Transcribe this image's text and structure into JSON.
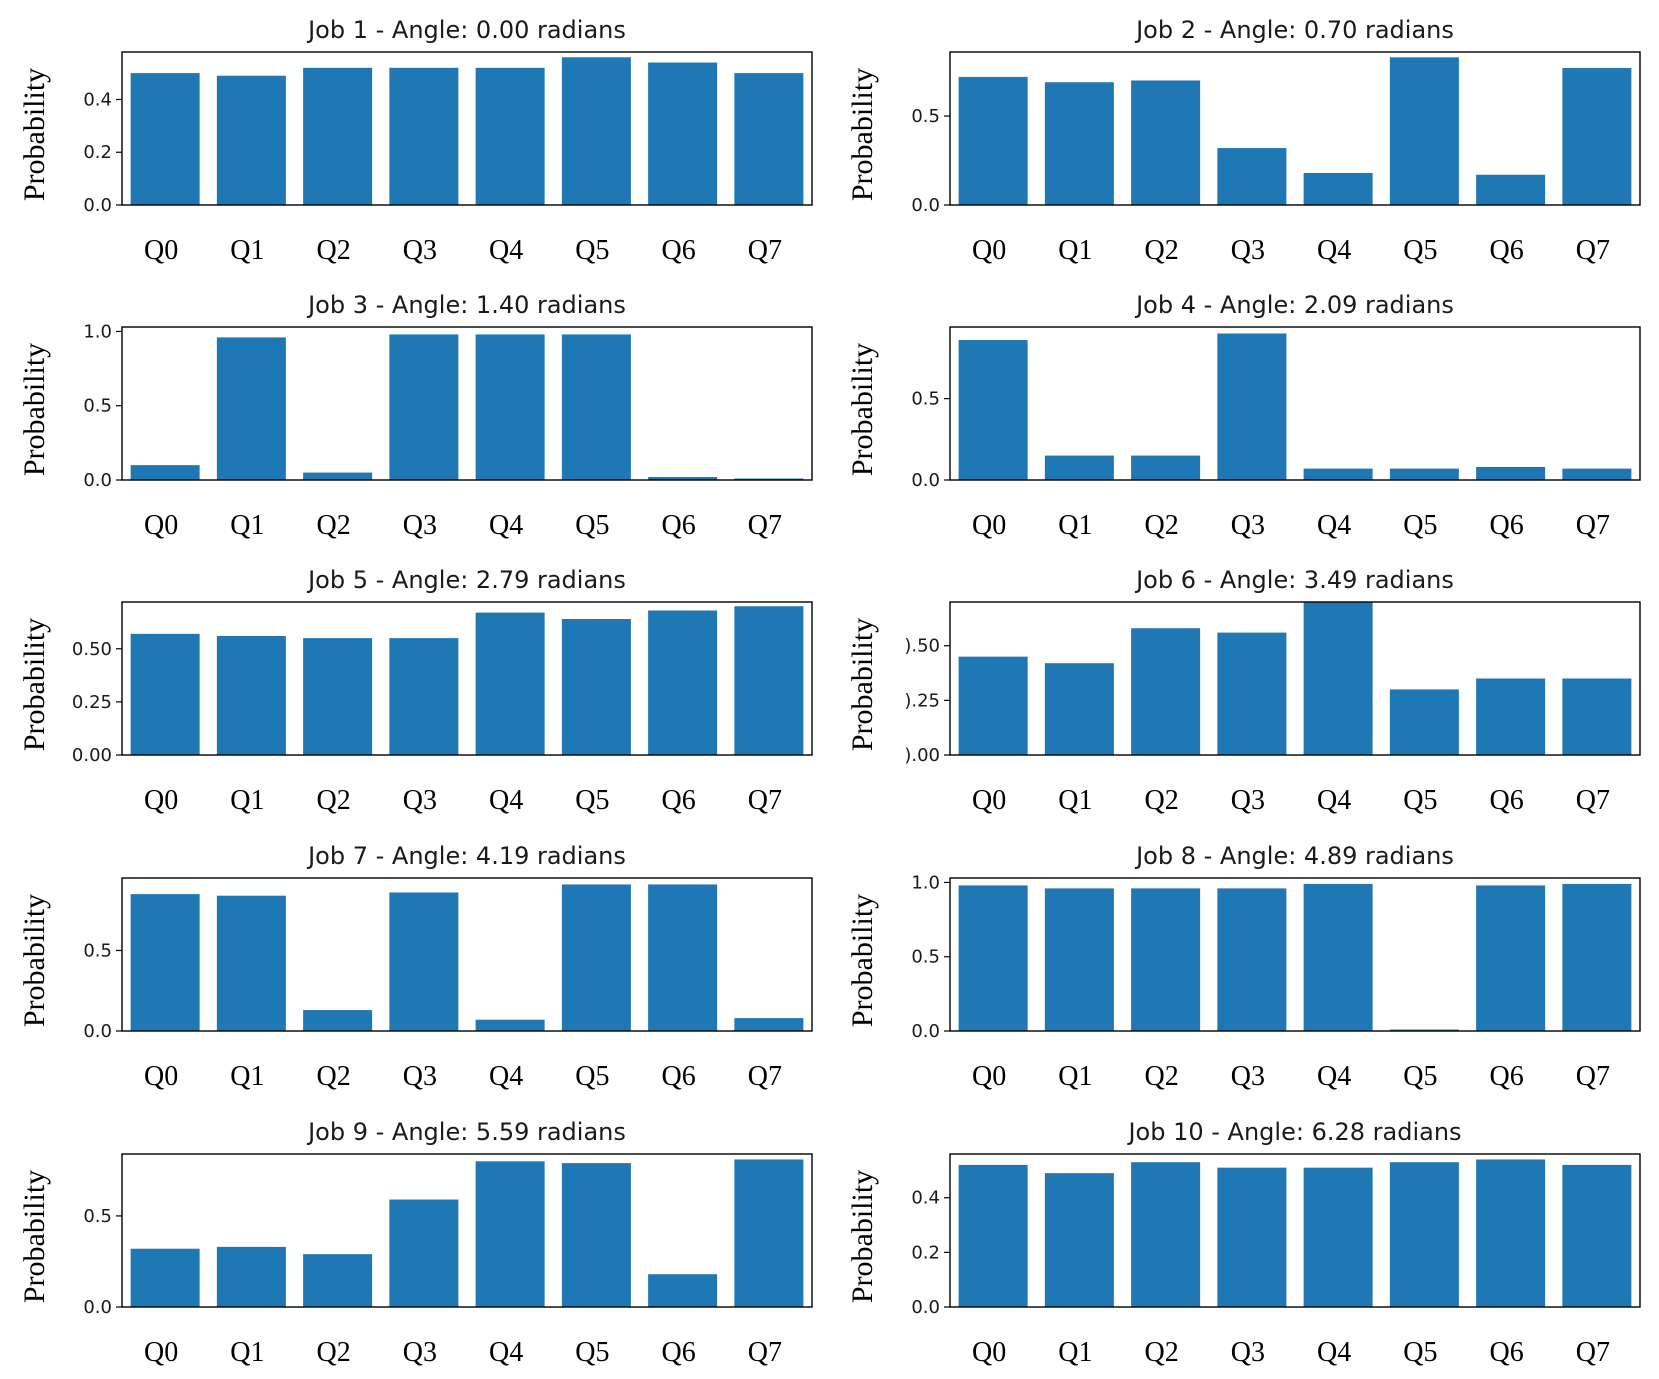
{
  "chart_data": [
    {
      "type": "bar",
      "title": "Job 1 - Angle: 0.00 radians",
      "ylabel": "Probability",
      "xlabel": "",
      "categories": [
        "Q0",
        "Q1",
        "Q2",
        "Q3",
        "Q4",
        "Q5",
        "Q6",
        "Q7"
      ],
      "values": [
        0.5,
        0.49,
        0.52,
        0.52,
        0.52,
        0.56,
        0.54,
        0.5
      ],
      "ylim": [
        0,
        0.58
      ],
      "yticks": [
        0.0,
        0.2,
        0.4
      ],
      "ytick_labels": [
        "0.0",
        "0.2",
        "0.4"
      ],
      "color": "#1f77b4"
    },
    {
      "type": "bar",
      "title": "Job 2 - Angle: 0.70 radians",
      "ylabel": "Probability",
      "xlabel": "",
      "categories": [
        "Q0",
        "Q1",
        "Q2",
        "Q3",
        "Q4",
        "Q5",
        "Q6",
        "Q7"
      ],
      "values": [
        0.72,
        0.69,
        0.7,
        0.32,
        0.18,
        0.83,
        0.17,
        0.77
      ],
      "ylim": [
        0,
        0.86
      ],
      "yticks": [
        0.0,
        0.5
      ],
      "ytick_labels": [
        "0.0",
        "0.5"
      ],
      "color": "#1f77b4"
    },
    {
      "type": "bar",
      "title": "Job 3 - Angle: 1.40 radians",
      "ylabel": "Probability",
      "xlabel": "",
      "categories": [
        "Q0",
        "Q1",
        "Q2",
        "Q3",
        "Q4",
        "Q5",
        "Q6",
        "Q7"
      ],
      "values": [
        0.1,
        0.96,
        0.05,
        0.98,
        0.98,
        0.98,
        0.02,
        0.01
      ],
      "ylim": [
        0,
        1.03
      ],
      "yticks": [
        0.0,
        0.5,
        1.0
      ],
      "ytick_labels": [
        "0.0",
        "0.5",
        "1.0"
      ],
      "color": "#1f77b4"
    },
    {
      "type": "bar",
      "title": "Job 4 - Angle: 2.09 radians",
      "ylabel": "Probability",
      "xlabel": "",
      "categories": [
        "Q0",
        "Q1",
        "Q2",
        "Q3",
        "Q4",
        "Q5",
        "Q6",
        "Q7"
      ],
      "values": [
        0.86,
        0.15,
        0.15,
        0.9,
        0.07,
        0.07,
        0.08,
        0.07
      ],
      "ylim": [
        0,
        0.94
      ],
      "yticks": [
        0.0,
        0.5
      ],
      "ytick_labels": [
        "0.0",
        "0.5"
      ],
      "color": "#1f77b4"
    },
    {
      "type": "bar",
      "title": "Job 5 - Angle: 2.79 radians",
      "ylabel": "Probability",
      "xlabel": "",
      "categories": [
        "Q0",
        "Q1",
        "Q2",
        "Q3",
        "Q4",
        "Q5",
        "Q6",
        "Q7"
      ],
      "values": [
        0.57,
        0.56,
        0.55,
        0.55,
        0.67,
        0.64,
        0.68,
        0.7
      ],
      "ylim": [
        0,
        0.72
      ],
      "yticks": [
        0.0,
        0.25,
        0.5
      ],
      "ytick_labels": [
        "0.00",
        "0.25",
        "0.50"
      ],
      "color": "#1f77b4"
    },
    {
      "type": "bar",
      "title": "Job 6 - Angle: 3.49 radians",
      "ylabel": "Probability",
      "xlabel": "",
      "categories": [
        "Q0",
        "Q1",
        "Q2",
        "Q3",
        "Q4",
        "Q5",
        "Q6",
        "Q7"
      ],
      "values": [
        0.45,
        0.42,
        0.58,
        0.56,
        0.7,
        0.3,
        0.35,
        0.35
      ],
      "ylim": [
        0,
        0.7
      ],
      "yticks": [
        0.0,
        0.25,
        0.5
      ],
      "ytick_labels": [
        ").00",
        ").25",
        ").50"
      ],
      "color": "#1f77b4"
    },
    {
      "type": "bar",
      "title": "Job 7 - Angle: 4.19 radians",
      "ylabel": "Probability",
      "xlabel": "",
      "categories": [
        "Q0",
        "Q1",
        "Q2",
        "Q3",
        "Q4",
        "Q5",
        "Q6",
        "Q7"
      ],
      "values": [
        0.85,
        0.84,
        0.13,
        0.86,
        0.07,
        0.91,
        0.91,
        0.08
      ],
      "ylim": [
        0,
        0.95
      ],
      "yticks": [
        0.0,
        0.5
      ],
      "ytick_labels": [
        "0.0",
        "0.5"
      ],
      "color": "#1f77b4"
    },
    {
      "type": "bar",
      "title": "Job 8 - Angle: 4.89 radians",
      "ylabel": "Probability",
      "xlabel": "",
      "categories": [
        "Q0",
        "Q1",
        "Q2",
        "Q3",
        "Q4",
        "Q5",
        "Q6",
        "Q7"
      ],
      "values": [
        0.98,
        0.96,
        0.96,
        0.96,
        0.99,
        0.01,
        0.98,
        0.99
      ],
      "ylim": [
        0,
        1.03
      ],
      "yticks": [
        0.0,
        0.5,
        1.0
      ],
      "ytick_labels": [
        "0.0",
        "0.5",
        "1.0"
      ],
      "color": "#1f77b4"
    },
    {
      "type": "bar",
      "title": "Job 9 - Angle: 5.59 radians",
      "ylabel": "Probability",
      "xlabel": "",
      "categories": [
        "Q0",
        "Q1",
        "Q2",
        "Q3",
        "Q4",
        "Q5",
        "Q6",
        "Q7"
      ],
      "values": [
        0.32,
        0.33,
        0.29,
        0.59,
        0.8,
        0.79,
        0.18,
        0.81
      ],
      "ylim": [
        0,
        0.84
      ],
      "yticks": [
        0.0,
        0.5
      ],
      "ytick_labels": [
        "0.0",
        "0.5"
      ],
      "color": "#1f77b4"
    },
    {
      "type": "bar",
      "title": "Job 10 - Angle: 6.28 radians",
      "ylabel": "Probability",
      "xlabel": "",
      "categories": [
        "Q0",
        "Q1",
        "Q2",
        "Q3",
        "Q4",
        "Q5",
        "Q6",
        "Q7"
      ],
      "values": [
        0.52,
        0.49,
        0.53,
        0.51,
        0.51,
        0.53,
        0.54,
        0.52
      ],
      "ylim": [
        0,
        0.56
      ],
      "yticks": [
        0.0,
        0.2,
        0.4
      ],
      "ytick_labels": [
        "0.0",
        "0.2",
        "0.4"
      ],
      "color": "#1f77b4"
    }
  ]
}
